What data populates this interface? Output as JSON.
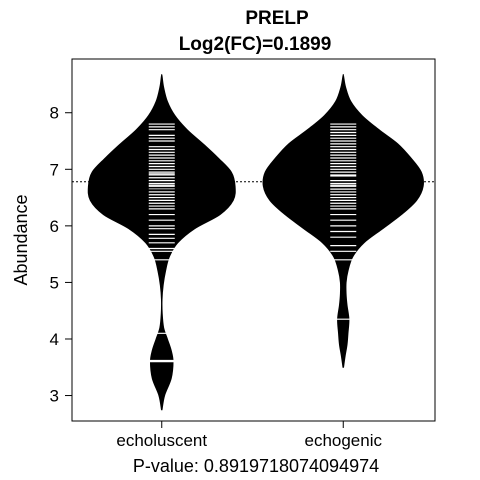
{
  "chart_data": {
    "type": "beanplot",
    "title": "PRELP",
    "subtitle": "Log2(FC)=0.1899",
    "xlabel": "P-value: 0.8919718074094974",
    "ylabel": "Abundance",
    "categories": [
      "echoluscent",
      "echogenic"
    ],
    "yticks": [
      3,
      4,
      5,
      6,
      7,
      8
    ],
    "ylim": [
      2.55,
      8.95
    ],
    "overall_mean": 6.78,
    "series": [
      {
        "category": "echoluscent",
        "mean": 6.63,
        "observations": [
          3.6,
          3.62,
          4.1,
          5.4,
          5.55,
          5.6,
          5.7,
          5.78,
          5.85,
          5.95,
          6.0,
          6.1,
          6.2,
          6.3,
          6.35,
          6.4,
          6.45,
          6.5,
          6.55,
          6.6,
          6.62,
          6.65,
          6.7,
          6.72,
          6.75,
          6.8,
          6.85,
          6.9,
          6.92,
          6.95,
          7.0,
          7.05,
          7.1,
          7.15,
          7.2,
          7.25,
          7.3,
          7.35,
          7.4,
          7.5,
          7.55,
          7.6,
          7.7,
          7.75,
          7.8
        ],
        "density": {
          "y": [
            2.75,
            3.0,
            3.3,
            3.6,
            3.8,
            4.0,
            4.2,
            4.45,
            4.7,
            4.95,
            5.2,
            5.45,
            5.7,
            5.95,
            6.2,
            6.45,
            6.7,
            6.95,
            7.2,
            7.45,
            7.7,
            7.95,
            8.2,
            8.45,
            8.65
          ],
          "w": [
            0.003,
            0.03,
            0.1,
            0.12,
            0.1,
            0.06,
            0.02,
            0.005,
            0.003,
            0.015,
            0.04,
            0.08,
            0.17,
            0.35,
            0.62,
            0.76,
            0.78,
            0.74,
            0.6,
            0.44,
            0.27,
            0.14,
            0.06,
            0.02,
            0.003
          ]
        }
      },
      {
        "category": "echogenic",
        "mean": 6.85,
        "observations": [
          4.35,
          5.4,
          5.55,
          5.65,
          5.8,
          5.9,
          6.0,
          6.1,
          6.2,
          6.3,
          6.35,
          6.4,
          6.45,
          6.5,
          6.55,
          6.6,
          6.65,
          6.7,
          6.72,
          6.75,
          6.8,
          6.85,
          6.88,
          6.9,
          6.95,
          7.0,
          7.05,
          7.1,
          7.15,
          7.2,
          7.25,
          7.3,
          7.35,
          7.4,
          7.45,
          7.5,
          7.55,
          7.6,
          7.65,
          7.7,
          7.75,
          7.8
        ],
        "density": {
          "y": [
            3.5,
            3.7,
            3.9,
            4.1,
            4.35,
            4.6,
            4.8,
            5.0,
            5.2,
            5.45,
            5.7,
            5.95,
            6.2,
            6.45,
            6.7,
            6.95,
            7.2,
            7.45,
            7.7,
            7.95,
            8.2,
            8.45,
            8.65
          ],
          "w": [
            0.003,
            0.02,
            0.04,
            0.05,
            0.06,
            0.04,
            0.03,
            0.03,
            0.05,
            0.1,
            0.22,
            0.42,
            0.62,
            0.78,
            0.85,
            0.83,
            0.72,
            0.58,
            0.38,
            0.2,
            0.08,
            0.025,
            0.003
          ]
        }
      }
    ]
  }
}
